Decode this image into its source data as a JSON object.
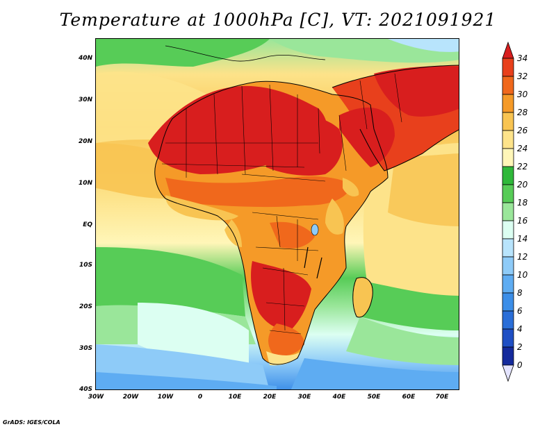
{
  "title": "Temperature at 1000hPa [C], VT: 2021091921",
  "credit": "GrADS: IGES/COLA",
  "map": {
    "lat_labels": [
      "40N",
      "30N",
      "20N",
      "10N",
      "EQ",
      "10S",
      "20S",
      "30S",
      "40S"
    ],
    "lon_labels": [
      "30W",
      "20W",
      "10W",
      "0",
      "10E",
      "20E",
      "30E",
      "40E",
      "50E",
      "60E",
      "70E"
    ],
    "lat_range": [
      -40,
      45
    ],
    "lon_range": [
      -30,
      75
    ]
  },
  "colorbar": {
    "labels": [
      "34",
      "32",
      "30",
      "28",
      "26",
      "24",
      "22",
      "20",
      "18",
      "16",
      "14",
      "12",
      "10",
      "8",
      "6",
      "4",
      "2",
      "0"
    ],
    "colors": [
      "#d81e1e",
      "#e8401c",
      "#f0681c",
      "#f59a28",
      "#f8c452",
      "#fde38a",
      "#fff6b8",
      "#2fb83a",
      "#57cc57",
      "#9ae69a",
      "#dcfff2",
      "#b8e4fc",
      "#8ecbf8",
      "#5eacf2",
      "#3c8ee8",
      "#2a6ed8",
      "#1f4fc4",
      "#142a9c",
      "#0a1470"
    ]
  }
}
